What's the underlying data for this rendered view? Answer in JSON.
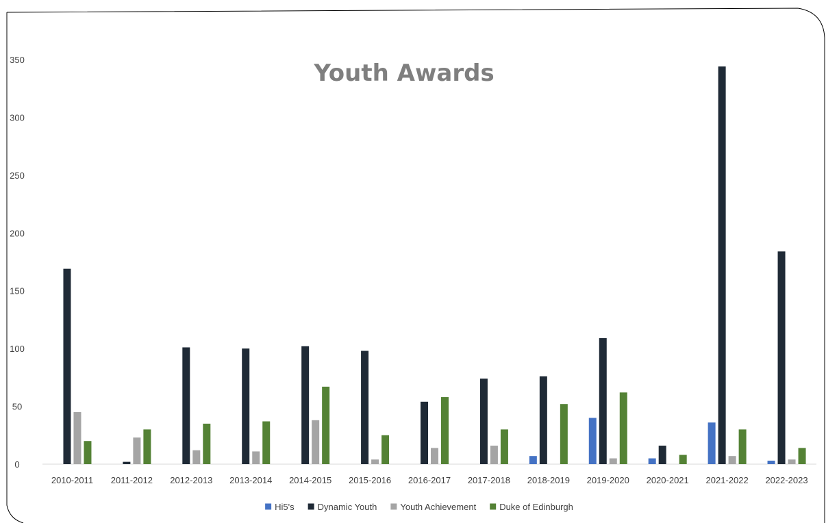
{
  "chart_data": {
    "type": "bar",
    "title": "Youth Awards",
    "categories": [
      "2010-2011",
      "2011-2012",
      "2012-2013",
      "2013-2014",
      "2014-2015",
      "2015-2016",
      "2016-2017",
      "2017-2018",
      "2018-2019",
      "2019-2020",
      "2020-2021",
      "2021-2022",
      "2022-2023"
    ],
    "series": [
      {
        "name": "Hi5's",
        "color": "#4472c4",
        "values": [
          0,
          0,
          0,
          0,
          0,
          0,
          0,
          0,
          7,
          40,
          5,
          36,
          3
        ]
      },
      {
        "name": "Dynamic Youth",
        "color": "#1f2a36",
        "values": [
          169,
          2,
          101,
          100,
          102,
          98,
          54,
          74,
          76,
          109,
          16,
          344,
          184
        ]
      },
      {
        "name": "Youth Achievement",
        "color": "#a5a5a5",
        "values": [
          45,
          23,
          12,
          11,
          38,
          4,
          14,
          16,
          0,
          5,
          0,
          7,
          4
        ]
      },
      {
        "name": "Duke of Edinburgh",
        "color": "#548235",
        "values": [
          20,
          30,
          35,
          37,
          67,
          25,
          58,
          30,
          52,
          62,
          8,
          30,
          14
        ]
      }
    ],
    "xlabel": "",
    "ylabel": "",
    "ylim": [
      0,
      350
    ],
    "yticks": [
      0,
      50,
      100,
      150,
      200,
      250,
      300,
      350
    ],
    "grid": false,
    "legend_position": "bottom"
  }
}
